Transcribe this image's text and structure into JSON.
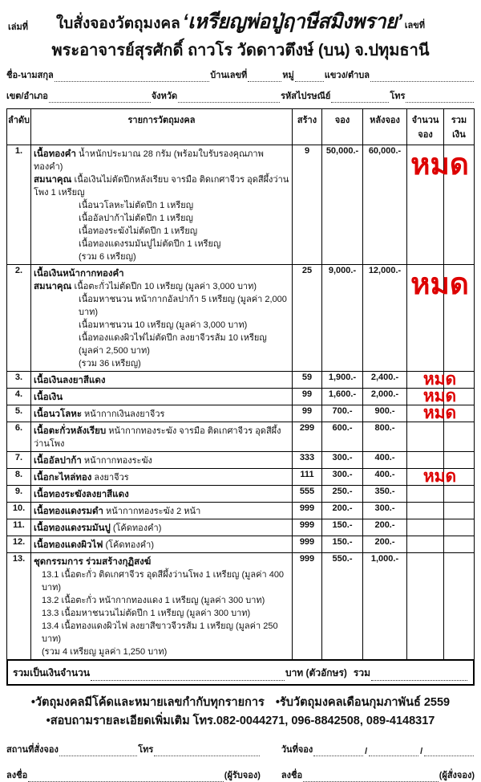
{
  "colors": {
    "sold_out_red": "#dd0000",
    "ink": "#111111"
  },
  "header": {
    "book_no_label": "เล่มที่",
    "title_prefix": "ใบสั่งจองวัตถุมงคล",
    "title_name": "‘เหรียญพ่อปู่ฤาษีสมิงพราย’",
    "number_label": "เลขที่",
    "subtitle": "พระอาจารย์สุรศักดิ์ ถาวโร วัดดาวตึงษ์ (บน) จ.ปทุมธานี"
  },
  "form": {
    "name_label": "ชื่อ-นามสกุล",
    "house_label": "บ้านเลขที่",
    "moo_label": "หมู่",
    "subdistrict_label": "แขวง/ตำบล",
    "district_label": "เขต/อำเภอ",
    "province_label": "จังหวัด",
    "postal_label": "รหัสไปรษณีย์",
    "phone_label": "โทร"
  },
  "table": {
    "headers": [
      "ลำดับ",
      "รายการวัตถุมงคล",
      "สร้าง",
      "จอง",
      "หลังจอง",
      "จำนวนจอง",
      "รวมเงิน"
    ],
    "sold_out_text": "หมด",
    "rows": [
      {
        "no": "1.",
        "title": "เนื้อทองคำ",
        "desc": "น้ำหนักประมาณ 28 กรัม (พร้อมใบรับรองคุณภาพทองคำ)",
        "sublines": [
          {
            "bold": "สมนาคุณ",
            "text": "เนื้อเงินไม่ตัดปีกหลังเรียบ จารมือ ติดเกศาจีวร อุดสีผึ้งว่านโพง 1 เหรียญ"
          },
          {
            "text": "เนื้อนวโลหะไม่ตัดปีก 1 เหรียญ"
          },
          {
            "text": "เนื้ออัลปาก้าไม่ตัดปีก 1 เหรียญ"
          },
          {
            "text": "เนื้อทองระฆังไม่ตัดปีก 1 เหรียญ"
          },
          {
            "text": "เนื้อทองแดงรมมันปูไม่ตัดปีก 1 เหรียญ"
          },
          {
            "text": "(รวม 6 เหรียญ)"
          }
        ],
        "made": "9",
        "reserve": "50,000.-",
        "after": "60,000.-",
        "sold_out": "large"
      },
      {
        "no": "2.",
        "title": "เนื้อเงินหน้ากากทองคำ",
        "desc": "",
        "sublines": [
          {
            "bold": "สมนาคุณ",
            "text": "เนื้อตะกั่วไม่ตัดปีก 10 เหรียญ (มูลค่า 3,000 บาท)"
          },
          {
            "text": "เนื้อมหาชนวน หน้ากากอัลปาก้า 5 เหรียญ (มูลค่า 2,000 บาท)"
          },
          {
            "text": "เนื้อมหาชนวน 10 เหรียญ (มูลค่า 3,000 บาท)"
          },
          {
            "text": "เนื้อทองแดงผิวไฟไม่ตัดปีก ลงยาจีวรส้ม 10 เหรียญ (มูลค่า 2,500 บาท)"
          },
          {
            "text": "(รวม 36 เหรียญ)"
          }
        ],
        "made": "25",
        "reserve": "9,000.-",
        "after": "12,000.-",
        "sold_out": "large"
      },
      {
        "no": "3.",
        "title": "เนื้อเงินลงยาสีแดง",
        "desc": "",
        "made": "59",
        "reserve": "1,900.-",
        "after": "2,400.-",
        "sold_out": "small"
      },
      {
        "no": "4.",
        "title": "เนื้อเงิน",
        "desc": "",
        "made": "99",
        "reserve": "1,600.-",
        "after": "2,000.-",
        "sold_out": "small"
      },
      {
        "no": "5.",
        "title": "เนื้อนวโลหะ",
        "desc": "หน้ากากเงินลงยาจีวร",
        "made": "99",
        "reserve": "700.-",
        "after": "900.-",
        "sold_out": "small"
      },
      {
        "no": "6.",
        "title": "เนื้อตะกั่วหลังเรียบ",
        "desc": "หน้ากากทองระฆัง จารมือ ติดเกศาจีวร อุดสีผึ้งว่านโพง",
        "made": "299",
        "reserve": "600.-",
        "after": "800.-"
      },
      {
        "no": "7.",
        "title": "เนื้ออัลปาก้า",
        "desc": "หน้ากากทองระฆัง",
        "made": "333",
        "reserve": "300.-",
        "after": "400.-"
      },
      {
        "no": "8.",
        "title": "เนื้อกะไหล่ทอง",
        "desc": "ลงยาจีวร",
        "made": "111",
        "reserve": "300.-",
        "after": "400.-",
        "sold_out": "small"
      },
      {
        "no": "9.",
        "title": "เนื้อทองระฆังลงยาสีแดง",
        "desc": "",
        "made": "555",
        "reserve": "250.-",
        "after": "350.-"
      },
      {
        "no": "10.",
        "title": "เนื้อทองแดงรมดำ",
        "desc": "หน้ากากทองระฆัง 2 หน้า",
        "made": "999",
        "reserve": "200.-",
        "after": "300.-"
      },
      {
        "no": "11.",
        "title": "เนื้อทองแดงรมมันปู",
        "desc": "(โค้ดทองคำ)",
        "made": "999",
        "reserve": "150.-",
        "after": "200.-"
      },
      {
        "no": "12.",
        "title": "เนื้อทองแดงผิวไฟ",
        "desc": "(โค้ดทองคำ)",
        "made": "999",
        "reserve": "150.-",
        "after": "200.-"
      },
      {
        "no": "13.",
        "title": "ชุดกรรมการ ร่วมสร้างกุฏิสงฆ์",
        "desc": "",
        "sublines": [
          {
            "text": "13.1 เนื้อตะกั่ว ติดเกศาจีวร อุดสีผึ้งว่านโพง 1 เหรียญ (มูลค่า 400 บาท)"
          },
          {
            "text": "13.2 เนื้อตะกั่ว หน้ากากทองแดง 1 เหรียญ (มูลค่า 300 บาท)"
          },
          {
            "text": "13.3 เนื้อมหาชนวนไม่ตัดปีก 1 เหรียญ (มูลค่า 300 บาท)"
          },
          {
            "text": "13.4 เนื้อทองแดงผิวไฟ ลงยาสีขาวจีวรส้ม 1 เหรียญ (มูลค่า 250 บาท)"
          },
          {
            "text": "(รวม 4 เหรียญ มูลค่า 1,250 บาท)"
          }
        ],
        "made": "999",
        "reserve": "550.-",
        "after": "1,000.-"
      }
    ]
  },
  "summary": {
    "total_label": "รวมเป็นเงินจำนวน",
    "baht_label": "บาท (ตัวอักษร)",
    "sum_label": "รวม"
  },
  "notes": {
    "line1a": "•วัตถุมงคลมีโค้ดและหมายเลขกำกับทุกรายการ",
    "line1b": "•รับวัตถุมงคลเดือนกุมภาพันธ์ 2559",
    "line2": "•สอบถามรายละเอียดเพิ่มเติม โทร.082-0044271, 096-8842508, 089-4148317"
  },
  "footer": {
    "place_label": "สถานที่สั่งจอง",
    "phone_label": "โทร",
    "sign_label": "ลงชื่อ",
    "receiver_label": "(ผู้รับจอง)",
    "date_label": "วันที่จอง",
    "date_slash": "/",
    "orderer_label": "(ผู้สั่งจอง)"
  }
}
